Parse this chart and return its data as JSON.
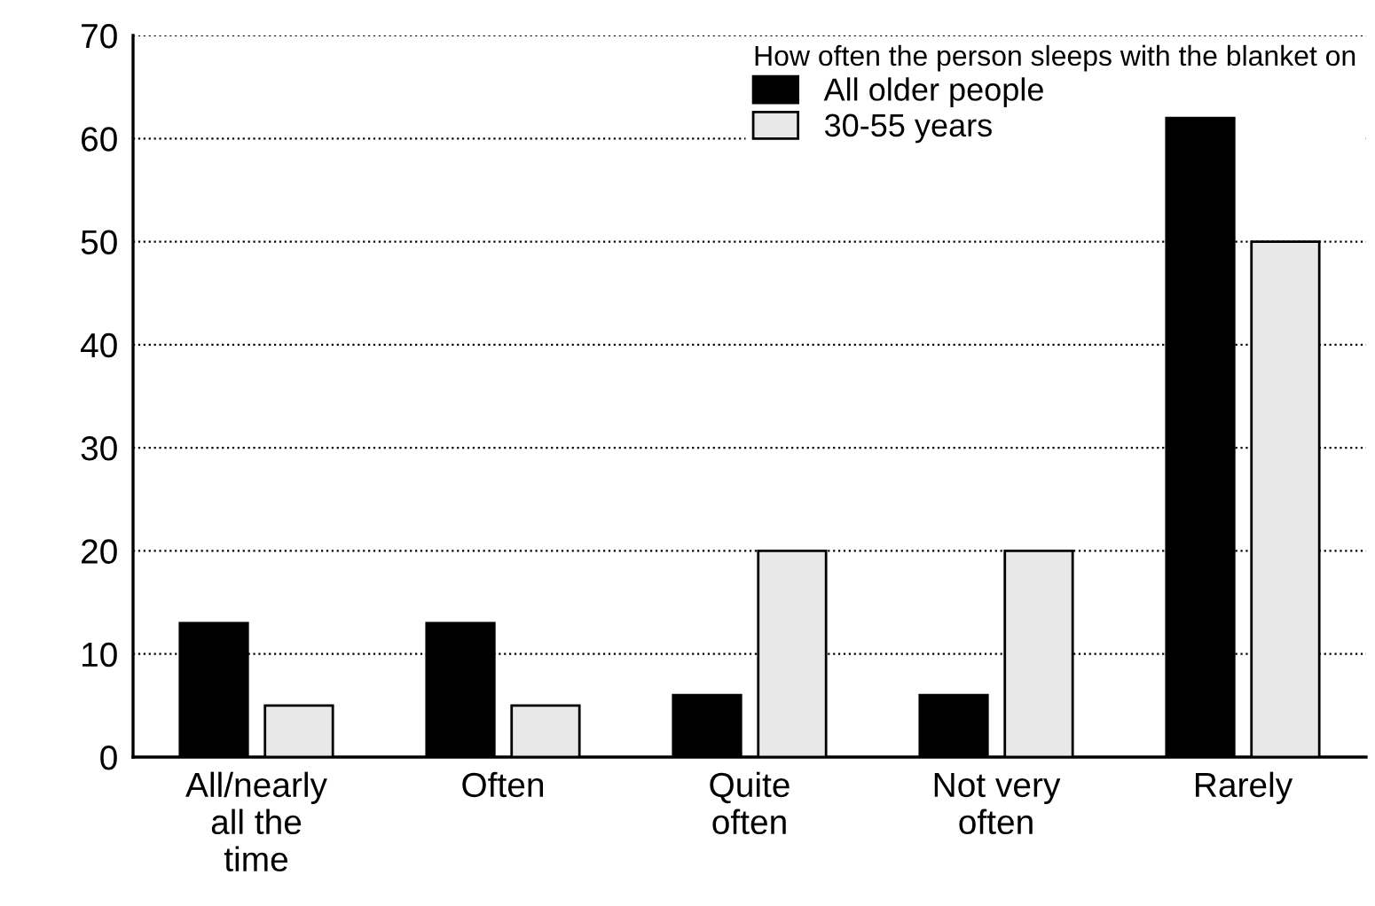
{
  "chart_data": {
    "type": "bar",
    "categories": [
      "All/nearly\nall the\ntime",
      "Often",
      "Quite\noften",
      "Not very\noften",
      "Rarely"
    ],
    "series": [
      {
        "name": "All older people",
        "color": "#000000",
        "values": [
          13,
          13,
          6,
          6,
          62
        ]
      },
      {
        "name": "30-55 years",
        "color": "#e8e8e8",
        "values": [
          5,
          5,
          20,
          20,
          50
        ]
      }
    ],
    "legend_title": "How often the person sleeps with the blanket on",
    "legend": "top right",
    "ylim": [
      0,
      70
    ],
    "yticks": [
      0,
      10,
      20,
      30,
      40,
      50,
      60,
      70
    ],
    "grid": "y",
    "line_style": "dotted"
  }
}
